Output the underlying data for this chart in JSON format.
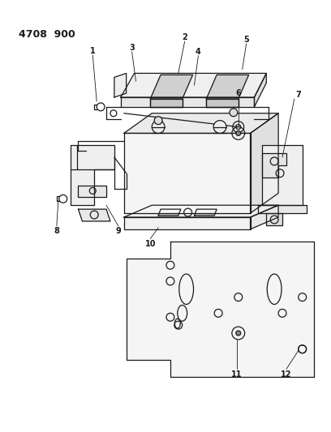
{
  "title": "4708  900",
  "bg": "#ffffff",
  "lc": "#1a1a1a",
  "fig_width": 4.08,
  "fig_height": 5.33,
  "dpi": 100
}
